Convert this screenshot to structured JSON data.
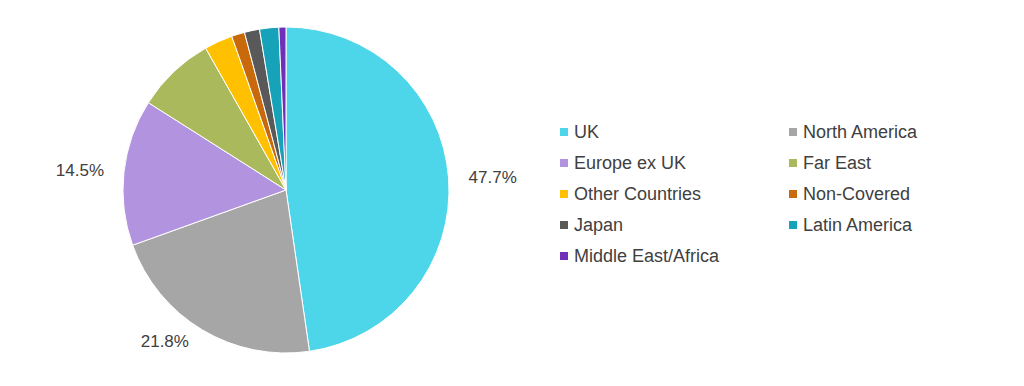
{
  "chart_data": {
    "type": "pie",
    "categories": [
      "UK",
      "North America",
      "Europe ex UK",
      "Far East",
      "Other Countries",
      "Non-Covered",
      "Japan",
      "Latin America",
      "Middle East/Africa"
    ],
    "values": [
      47.7,
      21.8,
      14.5,
      7.8,
      2.8,
      1.3,
      1.5,
      1.9,
      0.7
    ],
    "value_labels": [
      "47.7%",
      "21.8%",
      "14.5%",
      null,
      null,
      null,
      null,
      null,
      null
    ],
    "data_labels": true,
    "colors": [
      "#4dd5e9",
      "#a6a6a6",
      "#b293e0",
      "#a9b95b",
      "#ffc000",
      "#c8690c",
      "#595959",
      "#16a2b8",
      "#6f2fb8"
    ],
    "legend": "right"
  }
}
